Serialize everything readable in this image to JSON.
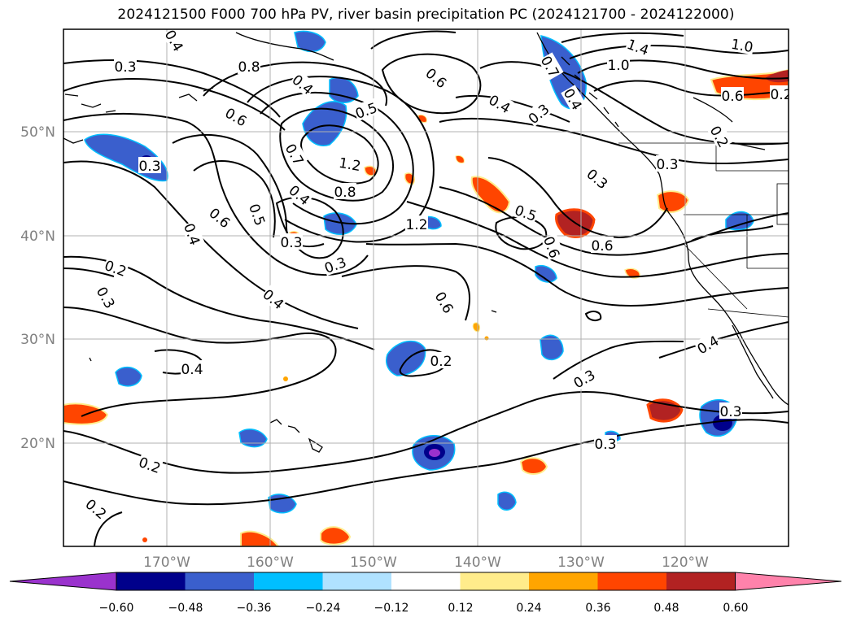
{
  "title": "2024121500 F000 700 hPa PV, river basin precipitation PC (2024121700 - 2024122000)",
  "map": {
    "lat_ticks": [
      "50°N",
      "40°N",
      "30°N",
      "20°N"
    ],
    "lon_ticks": [
      "170°W",
      "160°W",
      "150°W",
      "140°W",
      "130°W",
      "120°W"
    ],
    "gridlines": true,
    "contour_labels": [
      "0.3",
      "0.4",
      "0.8",
      "0.4",
      "0.6",
      "0.5",
      "0.3",
      "0.6",
      "0.4",
      "0.3",
      "1.2",
      "1.0",
      "1.4",
      "1.0",
      "0.6",
      "0.7",
      "0.4",
      "1.2",
      "0.8",
      "0.6",
      "0.5",
      "0.3",
      "0.4",
      "0.5",
      "0.6",
      "0.6",
      "0.3",
      "0.3",
      "0.3",
      "0.4",
      "0.6",
      "0.2",
      "0.3",
      "0.4",
      "0.2",
      "0.3",
      "0.4",
      "0.3",
      "0.3",
      "0.2",
      "0.2",
      "0.2",
      "0.2",
      "0.7",
      "0.4",
      "0.5"
    ]
  },
  "colorbar": {
    "ticks": [
      "−0.60",
      "−0.48",
      "−0.36",
      "−0.24",
      "−0.12",
      "0.12",
      "0.24",
      "0.36",
      "0.48",
      "0.60"
    ],
    "colors": [
      "#9a32cd",
      "#00008b",
      "#3a5fcd",
      "#00bfff",
      "#b0e2ff",
      "#ffffff",
      "#ffec8b",
      "#ffa500",
      "#ff4500",
      "#b22222",
      "#ff82ab"
    ]
  }
}
